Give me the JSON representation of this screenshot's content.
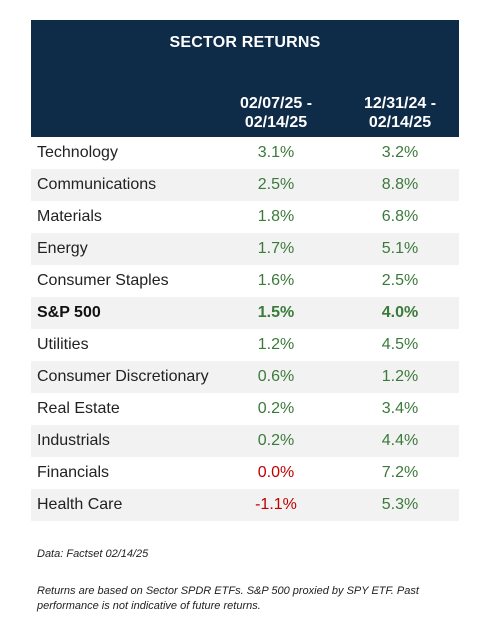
{
  "table": {
    "title": "SECTOR RETURNS",
    "col1_line1": "02/07/25 -",
    "col1_line2": "02/14/25",
    "col2_line1": "12/31/24 -",
    "col2_line2": "02/14/25",
    "rows": [
      {
        "name": "Technology",
        "week": "3.1%",
        "ytd": "3.2%",
        "bold": false,
        "negative_week": false
      },
      {
        "name": "Communications",
        "week": "2.5%",
        "ytd": "8.8%",
        "bold": false,
        "negative_week": false
      },
      {
        "name": "Materials",
        "week": "1.8%",
        "ytd": "6.8%",
        "bold": false,
        "negative_week": false
      },
      {
        "name": "Energy",
        "week": "1.7%",
        "ytd": "5.1%",
        "bold": false,
        "negative_week": false
      },
      {
        "name": "Consumer Staples",
        "week": "1.6%",
        "ytd": "2.5%",
        "bold": false,
        "negative_week": false
      },
      {
        "name": "S&P 500",
        "week": "1.5%",
        "ytd": "4.0%",
        "bold": true,
        "negative_week": false
      },
      {
        "name": "Utilities",
        "week": "1.2%",
        "ytd": "4.5%",
        "bold": false,
        "negative_week": false
      },
      {
        "name": "Consumer Discretionary",
        "week": "0.6%",
        "ytd": "1.2%",
        "bold": false,
        "negative_week": false
      },
      {
        "name": "Real Estate",
        "week": "0.2%",
        "ytd": "3.4%",
        "bold": false,
        "negative_week": false
      },
      {
        "name": "Industrials",
        "week": "0.2%",
        "ytd": "4.4%",
        "bold": false,
        "negative_week": false
      },
      {
        "name": "Financials",
        "week": "0.0%",
        "ytd": "7.2%",
        "bold": false,
        "negative_week": true
      },
      {
        "name": "Health Care",
        "week": "-1.1%",
        "ytd": "5.3%",
        "bold": false,
        "negative_week": true
      }
    ]
  },
  "colors": {
    "header_bg": "#0e2b47",
    "row_shade": "#f2f2f2",
    "negative": "#c00000",
    "positive_value": "#3a7a3a"
  },
  "notes": {
    "source": "Data: Factset 02/14/25",
    "disclaimer": "Returns are based on Sector SPDR ETFs. S&P 500 proxied by SPY ETF. Past performance is not indicative of future returns."
  }
}
